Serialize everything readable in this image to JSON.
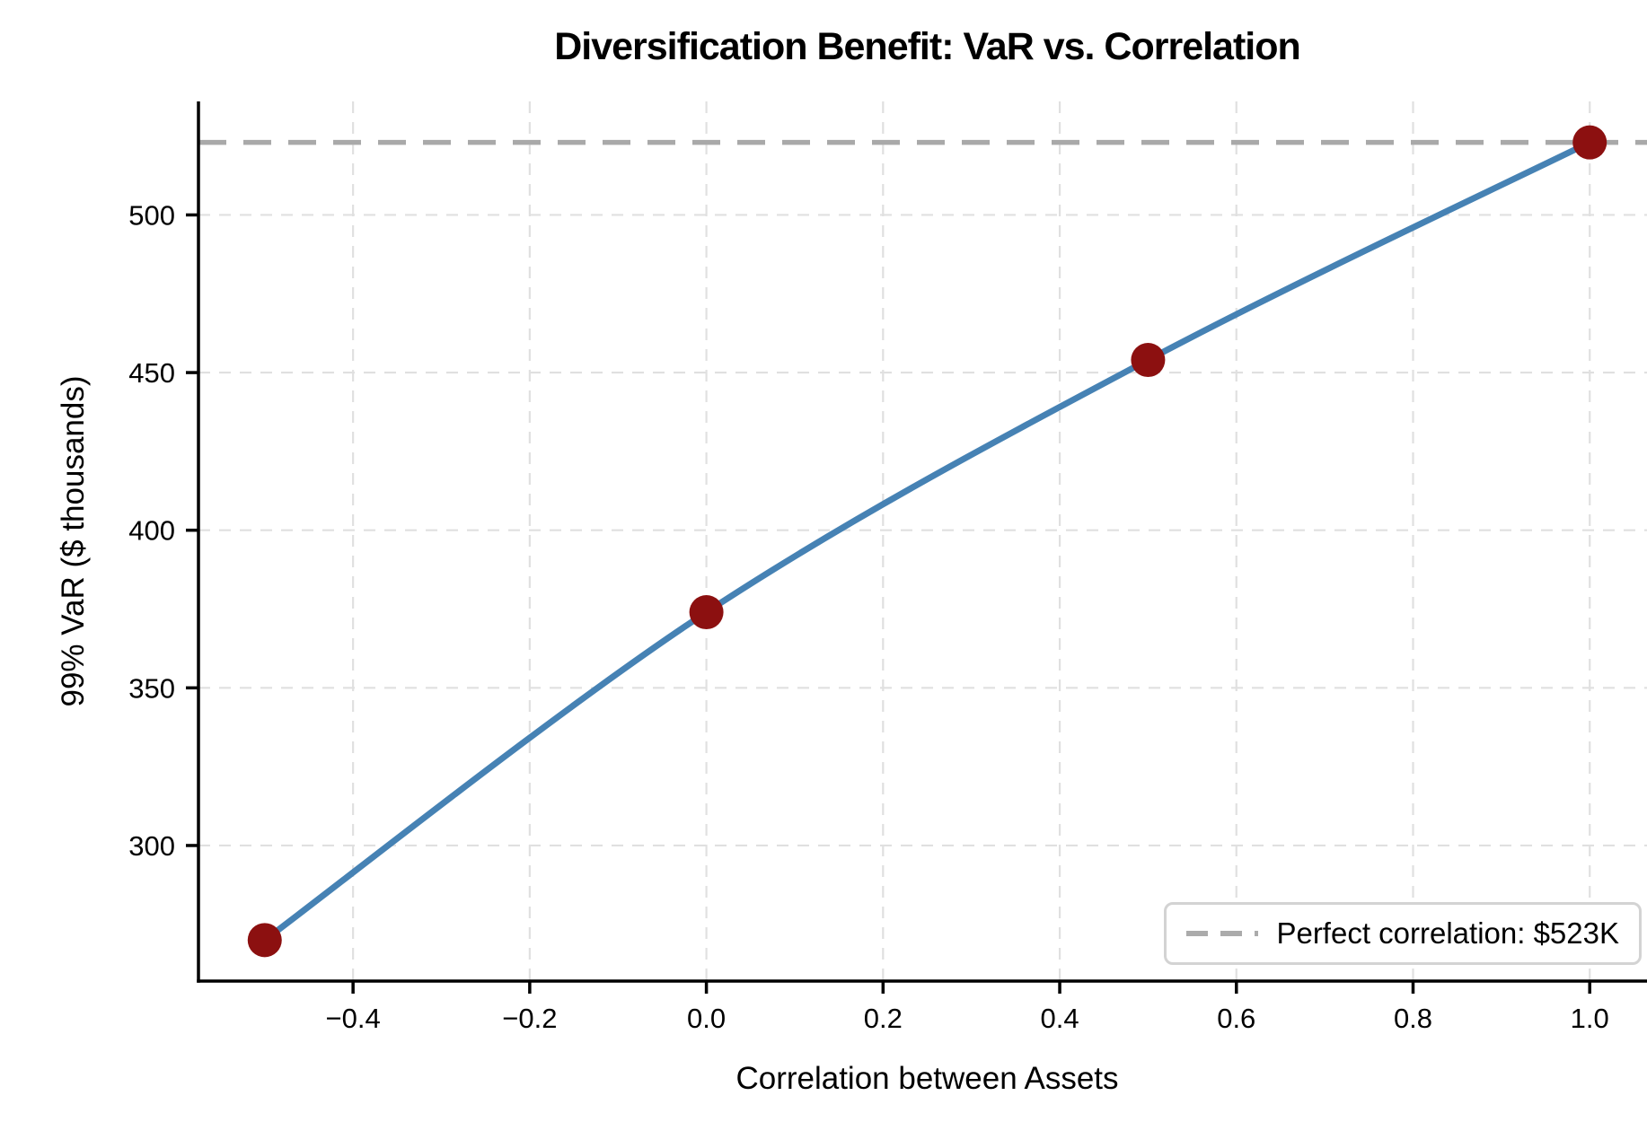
{
  "chart_data": {
    "type": "line",
    "title": "Diversification Benefit: VaR vs. Correlation",
    "xlabel": "Correlation between Assets",
    "ylabel": "99% VaR ($ thousands)",
    "x": [
      -0.5,
      0.0,
      0.5,
      1.0
    ],
    "y": [
      270,
      374,
      454,
      523
    ],
    "x_ticks": {
      "values": [
        -0.4,
        -0.2,
        0.0,
        0.2,
        0.4,
        0.6,
        0.8,
        1.0
      ],
      "labels": [
        "−0.4",
        "−0.2",
        "0.0",
        "0.2",
        "0.4",
        "0.6",
        "0.8",
        "1.0"
      ]
    },
    "y_ticks": {
      "values": [
        300,
        350,
        400,
        450,
        500
      ],
      "labels": [
        "300",
        "350",
        "400",
        "450",
        "500"
      ]
    },
    "xlim": [
      -0.575,
      1.075
    ],
    "ylim": [
      257,
      536
    ],
    "grid": true,
    "legend": {
      "label": "Perfect correlation: $523K",
      "position": "lower right"
    },
    "reference_line": {
      "y": 523,
      "style": "dashed"
    },
    "colors": {
      "line": "#4682B4",
      "marker": "#8C1010",
      "reference": "#A9A9A9",
      "grid": "#E0E0E0",
      "axis": "#000000",
      "text": "#000000",
      "legend_border": "#D3D3D3"
    }
  }
}
